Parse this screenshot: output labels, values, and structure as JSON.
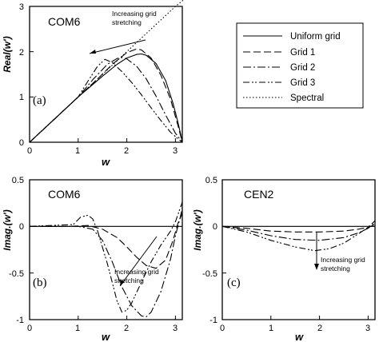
{
  "legend": {
    "items": [
      {
        "label": "Uniform grid",
        "dash": "none",
        "width": 1.7
      },
      {
        "label": "Grid 1",
        "dash": "9,4",
        "width": 1.1
      },
      {
        "label": "Grid 2",
        "dash": "10,3,2,3",
        "width": 1.1
      },
      {
        "label": "Grid 3",
        "dash": "8,3,2,2,2,3",
        "width": 1.1
      },
      {
        "label": "Spectral",
        "dash": "1.5,2.5",
        "width": 1.1
      }
    ]
  },
  "chart_data": [
    {
      "type": "line",
      "panel_label": "(a)",
      "title": "COM6",
      "xlabel": "w",
      "ylabel": "Real(w')",
      "xlim": [
        0,
        3.14159
      ],
      "ylim": [
        0,
        3
      ],
      "xticks": [
        "0",
        "1",
        "2",
        "3"
      ],
      "yticks": [
        "0",
        "1",
        "2",
        "3"
      ],
      "annotation": [
        "Increasing grid",
        "stretching"
      ],
      "series": [
        {
          "name": "Uniform grid",
          "x": [
            0,
            0.5,
            1.0,
            1.5,
            1.8,
            2.0,
            2.2,
            2.3,
            2.4,
            2.6,
            2.8,
            2.95,
            3.05,
            3.12,
            3.14159
          ],
          "y": [
            0,
            0.5,
            1.0,
            1.46,
            1.72,
            1.86,
            1.94,
            1.95,
            1.92,
            1.74,
            1.36,
            0.86,
            0.45,
            0.12,
            0
          ]
        },
        {
          "name": "Grid 1",
          "x": [
            0,
            0.5,
            1.0,
            1.4,
            1.7,
            2.0,
            2.2,
            2.3,
            2.5,
            2.7,
            2.9,
            3.05,
            3.14159
          ],
          "y": [
            0,
            0.5,
            1.0,
            1.4,
            1.72,
            1.98,
            2.06,
            2.04,
            1.86,
            1.48,
            0.95,
            0.38,
            0
          ]
        },
        {
          "name": "Grid 2",
          "x": [
            0,
            0.5,
            1.0,
            1.3,
            1.6,
            1.8,
            1.9,
            2.0,
            2.2,
            2.4,
            2.6,
            2.8,
            3.0,
            3.14159
          ],
          "y": [
            0,
            0.5,
            1.0,
            1.38,
            1.72,
            1.85,
            1.87,
            1.84,
            1.68,
            1.4,
            1.02,
            0.6,
            0.2,
            0
          ]
        },
        {
          "name": "Grid 3",
          "x": [
            0,
            0.5,
            1.0,
            1.2,
            1.4,
            1.55,
            1.7,
            1.9,
            2.1,
            2.3,
            2.5,
            2.7,
            2.9,
            3.05,
            3.14159
          ],
          "y": [
            0,
            0.5,
            1.0,
            1.35,
            1.68,
            1.83,
            1.76,
            1.56,
            1.32,
            1.05,
            0.76,
            0.48,
            0.22,
            0.08,
            0
          ]
        },
        {
          "name": "Spectral",
          "x": [
            0,
            3.14159
          ],
          "y": [
            0,
            3.14159
          ]
        }
      ]
    },
    {
      "type": "line",
      "panel_label": "(b)",
      "title": "COM6",
      "xlabel": "w",
      "ylabel": "Imag.(w')",
      "xlim": [
        0,
        3.14159
      ],
      "ylim": [
        -1,
        0.5
      ],
      "xticks": [
        "0",
        "1",
        "2",
        "3"
      ],
      "yticks": [
        "0.5",
        "0",
        "-0.5",
        "-1"
      ],
      "annotation": [
        "Increasing grid",
        "stretching"
      ],
      "series": [
        {
          "name": "Uniform grid",
          "x": [
            0,
            3.14159
          ],
          "y": [
            0,
            0
          ]
        },
        {
          "name": "Grid 1",
          "x": [
            0,
            0.8,
            1.2,
            1.5,
            1.8,
            2.0,
            2.2,
            2.4,
            2.6,
            2.8,
            2.95,
            3.05,
            3.14159
          ],
          "y": [
            0,
            0,
            0.01,
            -0.03,
            -0.12,
            -0.22,
            -0.33,
            -0.42,
            -0.45,
            -0.36,
            -0.15,
            0.03,
            0.14
          ]
        },
        {
          "name": "Grid 2",
          "x": [
            0,
            1.0,
            1.3,
            1.5,
            1.7,
            1.9,
            2.1,
            2.3,
            2.4,
            2.5,
            2.7,
            2.9,
            3.0,
            3.1,
            3.14159
          ],
          "y": [
            0,
            0,
            -0.03,
            -0.15,
            -0.38,
            -0.65,
            -0.85,
            -0.96,
            -0.97,
            -0.92,
            -0.7,
            -0.35,
            -0.1,
            0.1,
            0.2
          ]
        },
        {
          "name": "Grid 3",
          "x": [
            0,
            0.9,
            1.05,
            1.2,
            1.3,
            1.4,
            1.6,
            1.8,
            1.9,
            2.0,
            2.1,
            2.3,
            2.5,
            2.7,
            2.9,
            3.0,
            3.1,
            3.14159
          ],
          "y": [
            0,
            0.02,
            0.1,
            0.12,
            0.08,
            -0.05,
            -0.4,
            -0.8,
            -0.92,
            -0.9,
            -0.82,
            -0.6,
            -0.38,
            -0.2,
            -0.05,
            0.05,
            0.2,
            0.26
          ]
        }
      ]
    },
    {
      "type": "line",
      "panel_label": "(c)",
      "title": "CEN2",
      "xlabel": "w",
      "ylabel": "Imag.(w')",
      "xlim": [
        0,
        3.14159
      ],
      "ylim": [
        -1,
        0.5
      ],
      "xticks": [
        "0",
        "1",
        "2",
        "3"
      ],
      "yticks": [
        "0.5",
        "0",
        "-0.5",
        "-1"
      ],
      "annotation": [
        "Increasing grid",
        "stretching"
      ],
      "series": [
        {
          "name": "Uniform grid",
          "x": [
            0,
            3.14159
          ],
          "y": [
            0,
            0
          ]
        },
        {
          "name": "Grid 1",
          "x": [
            0,
            0.5,
            1.0,
            1.5,
            2.0,
            2.5,
            2.8,
            3.0,
            3.14159
          ],
          "y": [
            0,
            -0.02,
            -0.05,
            -0.06,
            -0.06,
            -0.05,
            -0.03,
            -0.01,
            0.02
          ]
        },
        {
          "name": "Grid 2",
          "x": [
            0,
            0.5,
            1.0,
            1.5,
            2.0,
            2.5,
            2.8,
            3.0,
            3.14159
          ],
          "y": [
            0,
            -0.04,
            -0.1,
            -0.14,
            -0.15,
            -0.12,
            -0.07,
            -0.02,
            0.04
          ]
        },
        {
          "name": "Grid 3",
          "x": [
            0,
            0.5,
            1.0,
            1.5,
            1.9,
            2.2,
            2.5,
            2.8,
            3.0,
            3.14159
          ],
          "y": [
            0,
            -0.06,
            -0.15,
            -0.22,
            -0.26,
            -0.24,
            -0.18,
            -0.08,
            -0.01,
            0.06
          ]
        }
      ]
    }
  ]
}
